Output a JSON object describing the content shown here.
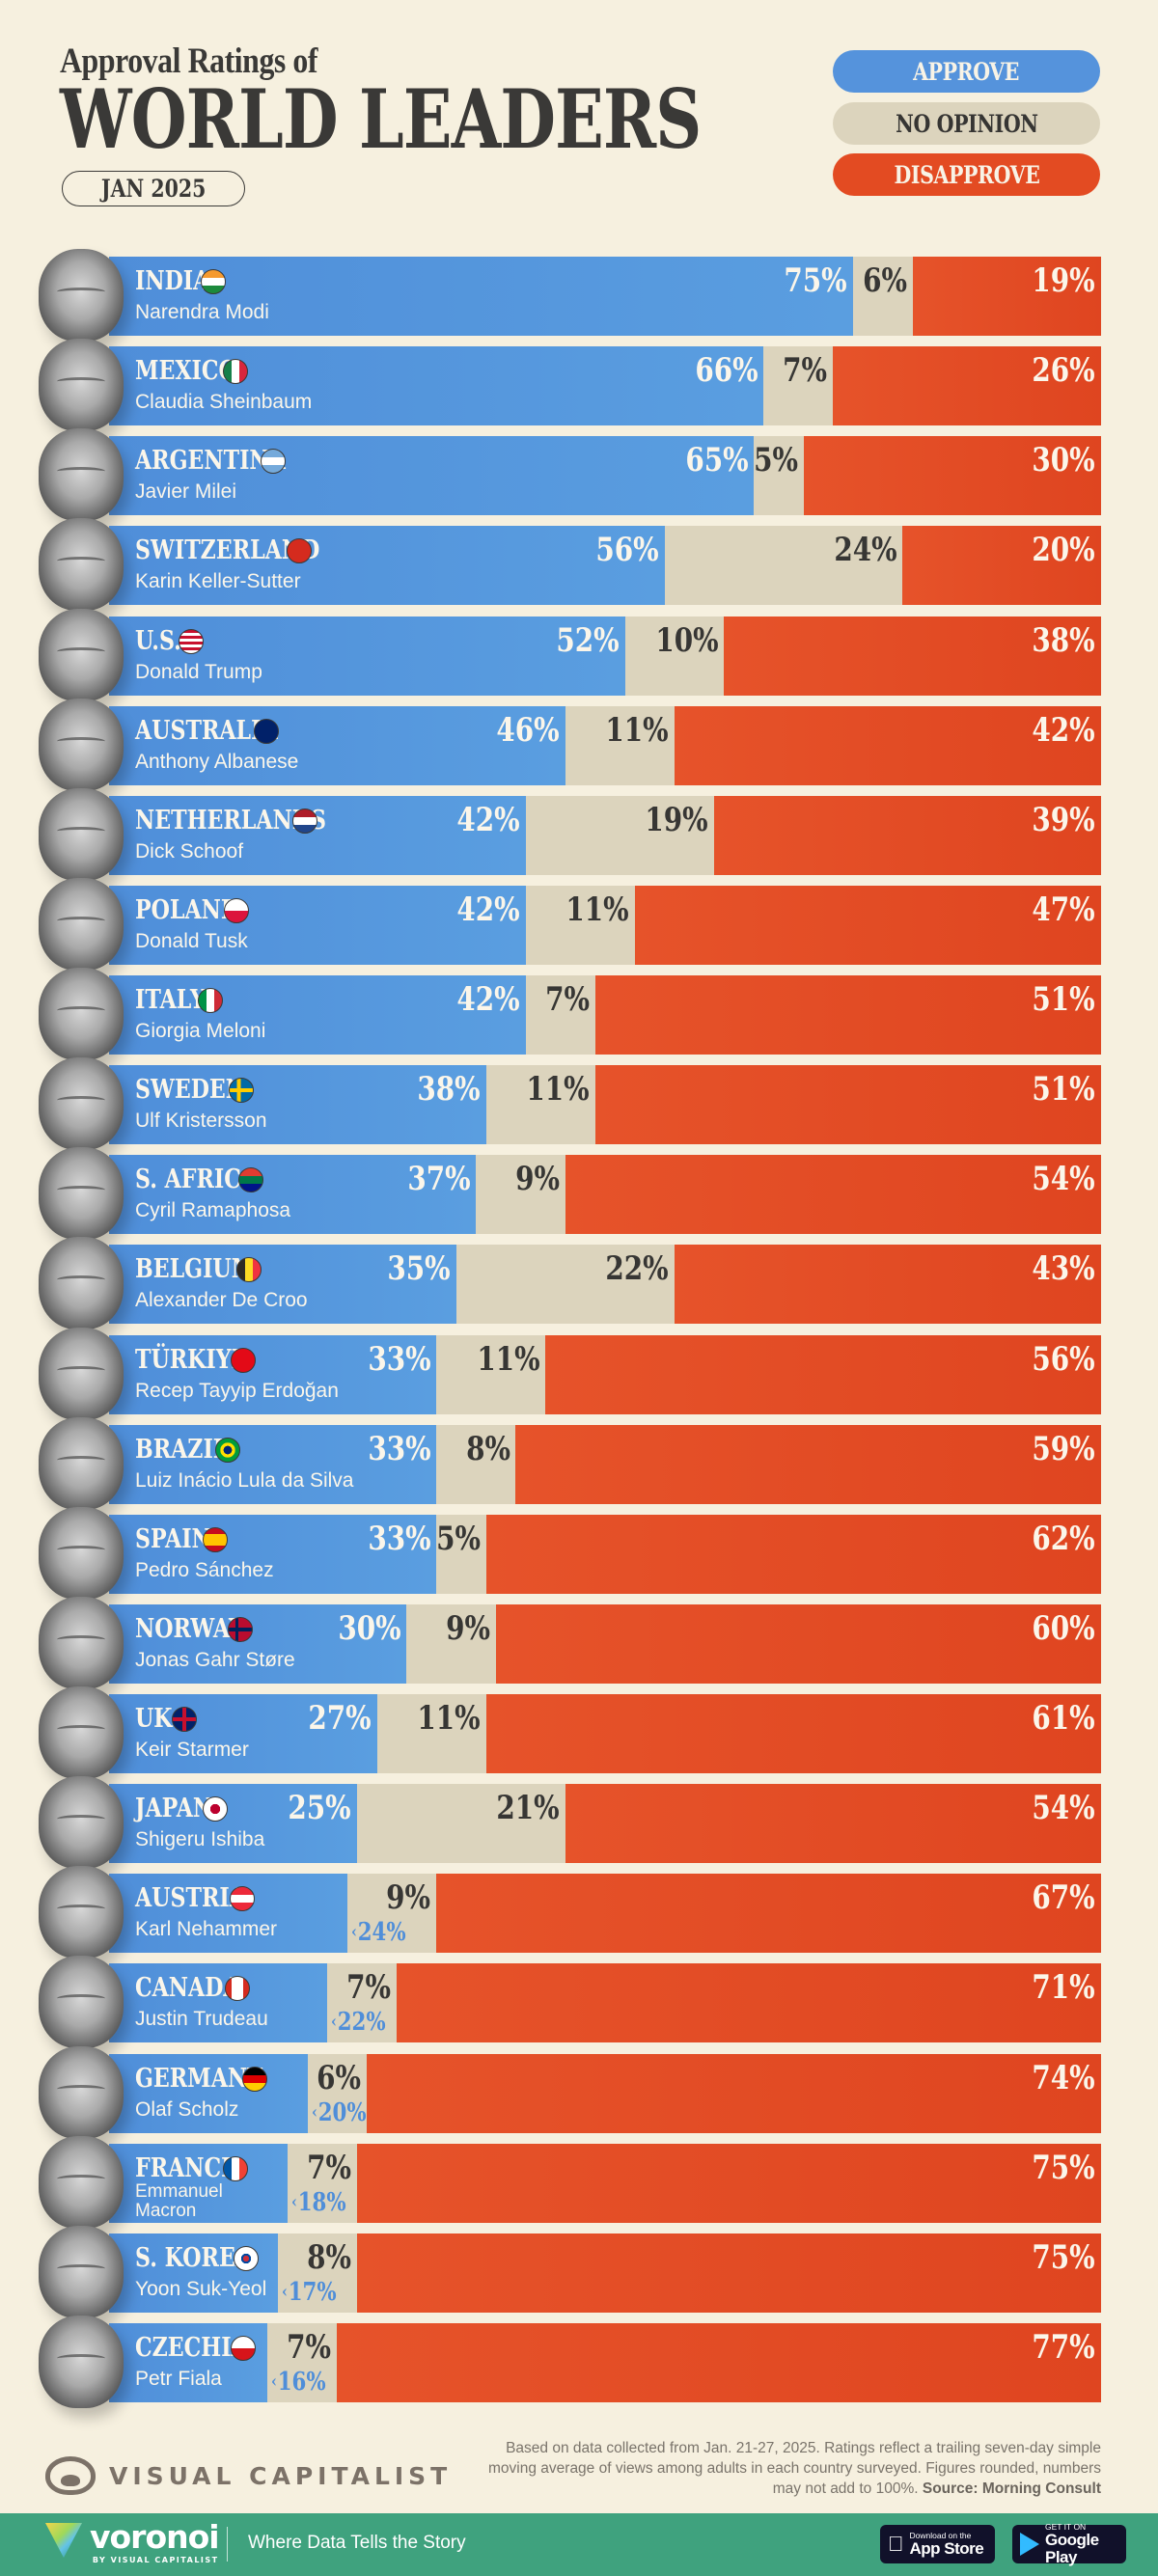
{
  "header": {
    "subtitle": "Approval Ratings of",
    "title": "WORLD LEADERS",
    "date": "JAN 2025"
  },
  "legend": {
    "approve": "APPROVE",
    "no_opinion": "NO OPINION",
    "disapprove": "DISAPPROVE"
  },
  "colors": {
    "approve": "#5593dc",
    "no_opinion": "#dcd4bd",
    "disapprove": "#e34b22",
    "background": "#f6f0df",
    "text_dark": "#3a3937",
    "footer_green": "#3fa27e"
  },
  "rows": [
    {
      "country": "INDIA",
      "leader": "Narendra Modi",
      "flag": "india-flag-icon",
      "approve": 75,
      "no_opinion": 6,
      "disapprove": 19,
      "approve_label": "75%",
      "no_opinion_label": "6%",
      "disapprove_label": "19%"
    },
    {
      "country": "MEXICO",
      "leader": "Claudia Sheinbaum",
      "flag": "mexico-flag-icon",
      "approve": 66,
      "no_opinion": 7,
      "disapprove": 26,
      "approve_label": "66%",
      "no_opinion_label": "7%",
      "disapprove_label": "26%"
    },
    {
      "country": "ARGENTINA",
      "leader": "Javier Milei",
      "flag": "argentina-flag-icon",
      "approve": 65,
      "no_opinion": 5,
      "disapprove": 30,
      "approve_label": "65%",
      "no_opinion_label": "5%",
      "disapprove_label": "30%"
    },
    {
      "country": "SWITZERLAND",
      "leader": "Karin Keller-Sutter",
      "flag": "switzerland-flag-icon",
      "approve": 56,
      "no_opinion": 24,
      "disapprove": 20,
      "approve_label": "56%",
      "no_opinion_label": "24%",
      "disapprove_label": "20%"
    },
    {
      "country": "U.S.",
      "leader": "Donald Trump",
      "flag": "us-flag-icon",
      "approve": 52,
      "no_opinion": 10,
      "disapprove": 38,
      "approve_label": "52%",
      "no_opinion_label": "10%",
      "disapprove_label": "38%"
    },
    {
      "country": "AUSTRALIA",
      "leader": "Anthony Albanese",
      "flag": "australia-flag-icon",
      "approve": 46,
      "no_opinion": 11,
      "disapprove": 42,
      "approve_label": "46%",
      "no_opinion_label": "11%",
      "disapprove_label": "42%"
    },
    {
      "country": "NETHERLANDS",
      "leader": "Dick Schoof",
      "flag": "netherlands-flag-icon",
      "approve": 42,
      "no_opinion": 19,
      "disapprove": 39,
      "approve_label": "42%",
      "no_opinion_label": "19%",
      "disapprove_label": "39%"
    },
    {
      "country": "POLAND",
      "leader": "Donald Tusk",
      "flag": "poland-flag-icon",
      "approve": 42,
      "no_opinion": 11,
      "disapprove": 47,
      "approve_label": "42%",
      "no_opinion_label": "11%",
      "disapprove_label": "47%"
    },
    {
      "country": "ITALY",
      "leader": "Giorgia Meloni",
      "flag": "italy-flag-icon",
      "approve": 42,
      "no_opinion": 7,
      "disapprove": 51,
      "approve_label": "42%",
      "no_opinion_label": "7%",
      "disapprove_label": "51%"
    },
    {
      "country": "SWEDEN",
      "leader": "Ulf Kristersson",
      "flag": "sweden-flag-icon",
      "approve": 38,
      "no_opinion": 11,
      "disapprove": 51,
      "approve_label": "38%",
      "no_opinion_label": "11%",
      "disapprove_label": "51%"
    },
    {
      "country": "S. AFRICA",
      "leader": "Cyril Ramaphosa",
      "flag": "south-africa-flag-icon",
      "approve": 37,
      "no_opinion": 9,
      "disapprove": 54,
      "approve_label": "37%",
      "no_opinion_label": "9%",
      "disapprove_label": "54%"
    },
    {
      "country": "BELGIUM",
      "leader": "Alexander De Croo",
      "flag": "belgium-flag-icon",
      "approve": 35,
      "no_opinion": 22,
      "disapprove": 43,
      "approve_label": "35%",
      "no_opinion_label": "22%",
      "disapprove_label": "43%"
    },
    {
      "country": "TÜRKIYE",
      "leader": "Recep Tayyip Erdoğan",
      "flag": "turkiye-flag-icon",
      "approve": 33,
      "no_opinion": 11,
      "disapprove": 56,
      "approve_label": "33%",
      "no_opinion_label": "11%",
      "disapprove_label": "56%"
    },
    {
      "country": "BRAZIL",
      "leader": "Luiz Inácio Lula da Silva",
      "flag": "brazil-flag-icon",
      "approve": 33,
      "no_opinion": 8,
      "disapprove": 59,
      "approve_label": "33%",
      "no_opinion_label": "8%",
      "disapprove_label": "59%"
    },
    {
      "country": "SPAIN",
      "leader": "Pedro Sánchez",
      "flag": "spain-flag-icon",
      "approve": 33,
      "no_opinion": 5,
      "disapprove": 62,
      "approve_label": "33%",
      "no_opinion_label": "5%",
      "disapprove_label": "62%"
    },
    {
      "country": "NORWAY",
      "leader": "Jonas Gahr Støre",
      "flag": "norway-flag-icon",
      "approve": 30,
      "no_opinion": 9,
      "disapprove": 60,
      "approve_label": "30%",
      "no_opinion_label": "9%",
      "disapprove_label": "60%"
    },
    {
      "country": "UK",
      "leader": "Keir Starmer",
      "flag": "uk-flag-icon",
      "approve": 27,
      "no_opinion": 11,
      "disapprove": 61,
      "approve_label": "27%",
      "no_opinion_label": "11%",
      "disapprove_label": "61%"
    },
    {
      "country": "JAPAN",
      "leader": "Shigeru Ishiba",
      "flag": "japan-flag-icon",
      "approve": 25,
      "no_opinion": 21,
      "disapprove": 54,
      "approve_label": "25%",
      "no_opinion_label": "21%",
      "disapprove_label": "54%"
    },
    {
      "country": "AUSTRIA",
      "leader": "Karl Nehammer",
      "flag": "austria-flag-icon",
      "approve": 24,
      "no_opinion": 9,
      "disapprove": 67,
      "approve_label": "24%",
      "no_opinion_label": "9%",
      "disapprove_label": "67%",
      "approve_outside": true
    },
    {
      "country": "CANADA",
      "leader": "Justin Trudeau",
      "flag": "canada-flag-icon",
      "approve": 22,
      "no_opinion": 7,
      "disapprove": 71,
      "approve_label": "22%",
      "no_opinion_label": "7%",
      "disapprove_label": "71%",
      "approve_outside": true
    },
    {
      "country": "GERMANY",
      "leader": "Olaf Scholz",
      "flag": "germany-flag-icon",
      "approve": 20,
      "no_opinion": 6,
      "disapprove": 74,
      "approve_label": "20%",
      "no_opinion_label": "6%",
      "disapprove_label": "74%",
      "approve_outside": true
    },
    {
      "country": "FRANCE",
      "leader": "Emmanuel Macron",
      "flag": "france-flag-icon",
      "approve": 18,
      "no_opinion": 7,
      "disapprove": 75,
      "approve_label": "18%",
      "no_opinion_label": "7%",
      "disapprove_label": "75%",
      "approve_outside": true,
      "leader_wrap": true
    },
    {
      "country": "S. KOREA",
      "leader": "Yoon Suk-Yeol",
      "flag": "south-korea-flag-icon",
      "approve": 17,
      "no_opinion": 8,
      "disapprove": 75,
      "approve_label": "17%",
      "no_opinion_label": "8%",
      "disapprove_label": "75%",
      "approve_outside": true
    },
    {
      "country": "CZECHIA",
      "leader": "Petr Fiala",
      "flag": "czechia-flag-icon",
      "approve": 16,
      "no_opinion": 7,
      "disapprove": 77,
      "approve_label": "16%",
      "no_opinion_label": "7%",
      "disapprove_label": "77%",
      "approve_outside": true
    }
  ],
  "footer": {
    "note": "Based on data collected from Jan. 21-27, 2025. Ratings reflect a trailing seven-day simple moving average of views among adults in each country surveyed. Figures rounded, numbers may not add to 100%.",
    "source": "Source: Morning Consult",
    "brand": "VISUAL CAPITALIST",
    "voronoi": "voronoi",
    "voronoi_by": "BY VISUAL CAPITALIST",
    "tagline": "Where Data Tells the Story",
    "app_store_small": "Download on the",
    "app_store_big": "App Store",
    "google_play_small": "GET IT ON",
    "google_play_big": "Google Play"
  },
  "chart_data": {
    "type": "bar",
    "orientation": "horizontal",
    "stacked": true,
    "title": "Approval Ratings of World Leaders",
    "subtitle": "JAN 2025",
    "xlabel": "",
    "ylabel": "",
    "xlim": [
      0,
      100
    ],
    "legend": [
      "APPROVE",
      "NO OPINION",
      "DISAPPROVE"
    ],
    "legend_position": "top-right",
    "grid": false,
    "categories": [
      "India (Narendra Modi)",
      "Mexico (Claudia Sheinbaum)",
      "Argentina (Javier Milei)",
      "Switzerland (Karin Keller-Sutter)",
      "U.S. (Donald Trump)",
      "Australia (Anthony Albanese)",
      "Netherlands (Dick Schoof)",
      "Poland (Donald Tusk)",
      "Italy (Giorgia Meloni)",
      "Sweden (Ulf Kristersson)",
      "S. Africa (Cyril Ramaphosa)",
      "Belgium (Alexander De Croo)",
      "Türkiye (Recep Tayyip Erdoğan)",
      "Brazil (Luiz Inácio Lula da Silva)",
      "Spain (Pedro Sánchez)",
      "Norway (Jonas Gahr Støre)",
      "UK (Keir Starmer)",
      "Japan (Shigeru Ishiba)",
      "Austria (Karl Nehammer)",
      "Canada (Justin Trudeau)",
      "Germany (Olaf Scholz)",
      "France (Emmanuel Macron)",
      "S. Korea (Yoon Suk-Yeol)",
      "Czechia (Petr Fiala)"
    ],
    "series": [
      {
        "name": "Approve",
        "color": "#5593dc",
        "values": [
          75,
          66,
          65,
          56,
          52,
          46,
          42,
          42,
          42,
          38,
          37,
          35,
          33,
          33,
          33,
          30,
          27,
          25,
          24,
          22,
          20,
          18,
          17,
          16
        ]
      },
      {
        "name": "No Opinion",
        "color": "#dcd4bd",
        "values": [
          6,
          7,
          5,
          24,
          10,
          11,
          19,
          11,
          7,
          11,
          9,
          22,
          11,
          8,
          5,
          9,
          11,
          21,
          9,
          7,
          6,
          7,
          8,
          7
        ]
      },
      {
        "name": "Disapprove",
        "color": "#e34b22",
        "values": [
          19,
          26,
          30,
          20,
          38,
          42,
          39,
          47,
          51,
          51,
          54,
          43,
          56,
          59,
          62,
          60,
          61,
          54,
          67,
          71,
          74,
          75,
          75,
          77
        ]
      }
    ],
    "source": "Morning Consult",
    "note": "Based on data collected from Jan. 21-27, 2025. Ratings reflect a trailing seven-day simple moving average of views among adults in each country surveyed. Figures rounded, numbers may not add to 100%."
  }
}
